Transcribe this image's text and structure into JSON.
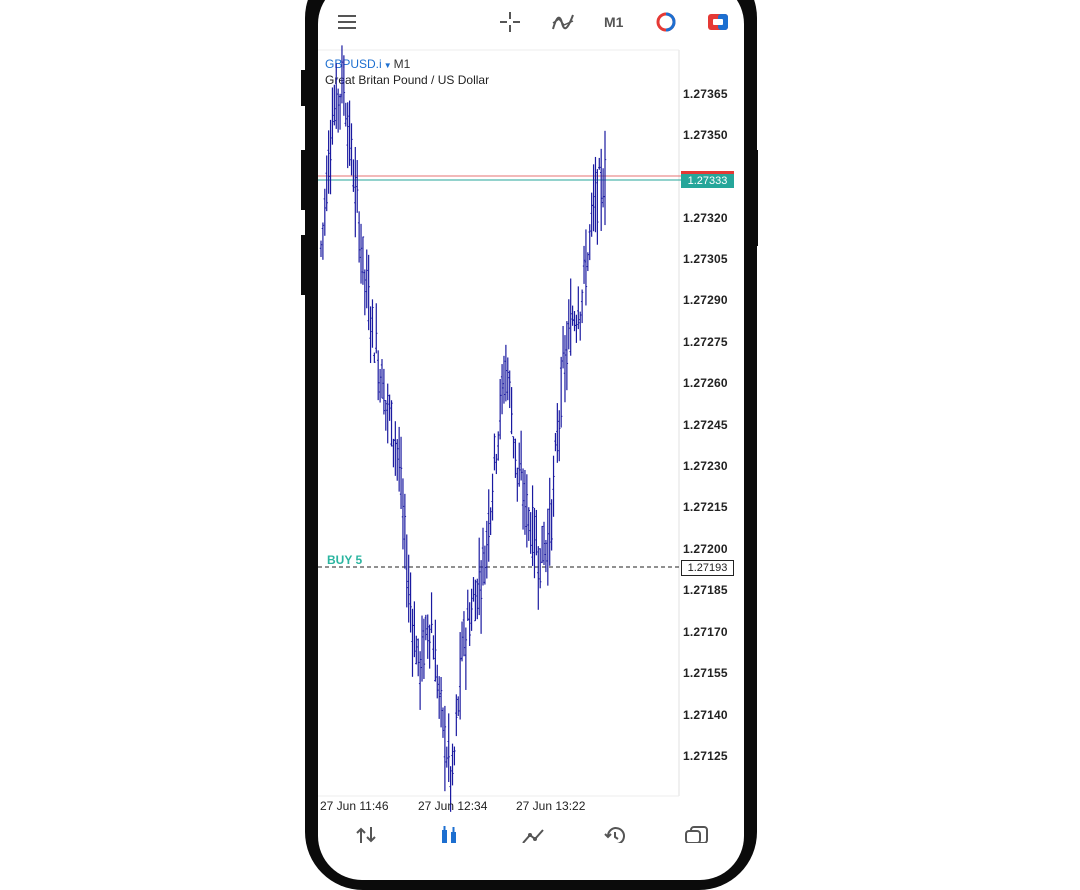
{
  "toolbar": {
    "menu_icon": "hamburger-menu-icon",
    "crosshair_icon": "crosshair-icon",
    "indicators_icon": "indicators-icon",
    "timeframe": "M1",
    "chart_type_icon": "chart-type-icon",
    "trade_icon": "trade-icon"
  },
  "symbol": {
    "name": "GBPUSD.i",
    "timeframe": "M1",
    "description": "Great Britan Pound / US Dollar"
  },
  "price_axis": {
    "ticks": [
      "1.27365",
      "1.27350",
      "1.27320",
      "1.27305",
      "1.27290",
      "1.27275",
      "1.27260",
      "1.27245",
      "1.27230",
      "1.27215",
      "1.27200",
      "1.27185",
      "1.27170",
      "1.27155",
      "1.27140",
      "1.27125"
    ],
    "bid_label": "1.27333",
    "order_price_label": "1.27193"
  },
  "time_axis": {
    "ticks": [
      "27 Jun 11:46",
      "27 Jun 12:34",
      "27 Jun 13:22"
    ]
  },
  "order_line": {
    "label": "BUY 5"
  },
  "colors": {
    "candle": "#1a1aa0",
    "bid_line": "#26a69a",
    "ask_line": "#e53935",
    "order_line": "#222222"
  },
  "bottom_nav": [
    "quotes-icon",
    "chart-icon",
    "trade-icon",
    "history-icon",
    "messages-icon"
  ],
  "chart_data": {
    "type": "ohlc",
    "symbol": "GBPUSD.i",
    "ylim": [
      1.27116,
      1.2738
    ],
    "series_close_approx": [
      1.2731,
      1.27355,
      1.2737,
      1.27335,
      1.273,
      1.27275,
      1.27255,
      1.2724,
      1.2719,
      1.2716,
      1.2718,
      1.27145,
      1.2712,
      1.2717,
      1.27185,
      1.272,
      1.2724,
      1.2727,
      1.2723,
      1.27215,
      1.272,
      1.2721,
      1.2726,
      1.27285,
      1.27295,
      1.27325,
      1.27335
    ]
  }
}
